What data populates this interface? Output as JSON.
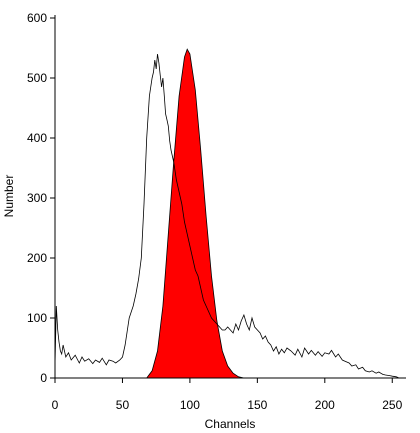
{
  "chart_data": {
    "type": "area",
    "title": "",
    "xlabel": "Channels",
    "ylabel": "Number",
    "xlim": [
      0,
      255
    ],
    "ylim": [
      0,
      600
    ],
    "x_ticks": [
      0,
      50,
      100,
      150,
      200,
      250
    ],
    "y_ticks": [
      0,
      100,
      200,
      300,
      400,
      500,
      600
    ],
    "grid": false,
    "legend": "none",
    "series": [
      {
        "style": "line",
        "color": "#000000",
        "x": [
          0,
          1,
          2,
          3,
          4,
          5,
          6,
          8,
          10,
          12,
          15,
          18,
          20,
          22,
          25,
          28,
          30,
          33,
          35,
          38,
          40,
          43,
          45,
          48,
          50,
          52,
          55,
          58,
          60,
          62,
          64,
          66,
          68,
          70,
          72,
          73,
          74,
          75,
          76,
          77,
          78,
          79,
          80,
          81,
          82,
          83,
          84,
          85,
          86,
          88,
          90,
          92,
          94,
          96,
          98,
          100,
          102,
          104,
          106,
          108,
          110,
          112,
          114,
          116,
          118,
          120,
          122,
          124,
          126,
          128,
          130,
          132,
          134,
          136,
          138,
          140,
          142,
          144,
          146,
          148,
          150,
          152,
          154,
          156,
          158,
          160,
          162,
          164,
          166,
          168,
          170,
          172,
          175,
          178,
          180,
          183,
          185,
          188,
          190,
          193,
          195,
          198,
          200,
          203,
          205,
          208,
          210,
          213,
          215,
          218,
          220,
          223,
          225,
          228,
          230,
          233,
          235,
          238,
          240,
          243,
          245,
          248,
          250,
          253,
          255
        ],
        "values": [
          20,
          120,
          80,
          60,
          45,
          40,
          55,
          35,
          42,
          30,
          38,
          25,
          35,
          28,
          32,
          24,
          30,
          26,
          33,
          22,
          30,
          28,
          25,
          30,
          35,
          55,
          100,
          120,
          140,
          165,
          200,
          290,
          400,
          470,
          500,
          510,
          530,
          515,
          540,
          525,
          505,
          485,
          500,
          470,
          440,
          430,
          420,
          395,
          380,
          360,
          330,
          310,
          290,
          260,
          240,
          220,
          200,
          180,
          170,
          150,
          130,
          120,
          110,
          100,
          95,
          90,
          85,
          80,
          80,
          85,
          80,
          75,
          90,
          80,
          95,
          105,
          90,
          80,
          100,
          85,
          80,
          75,
          65,
          70,
          60,
          55,
          45,
          52,
          40,
          48,
          42,
          50,
          45,
          38,
          48,
          35,
          50,
          40,
          46,
          38,
          44,
          36,
          42,
          40,
          46,
          35,
          40,
          30,
          28,
          25,
          20,
          22,
          15,
          18,
          12,
          10,
          12,
          8,
          10,
          6,
          5,
          4,
          3,
          2,
          0
        ]
      },
      {
        "style": "filled",
        "color": "#ff0000",
        "x": [
          68,
          72,
          76,
          80,
          84,
          88,
          92,
          96,
          98,
          100,
          104,
          108,
          112,
          116,
          120,
          124,
          128,
          132,
          136,
          140
        ],
        "values": [
          0,
          12,
          45,
          120,
          240,
          360,
          470,
          535,
          548,
          540,
          480,
          380,
          270,
          170,
          95,
          45,
          20,
          8,
          2,
          0
        ]
      }
    ]
  }
}
